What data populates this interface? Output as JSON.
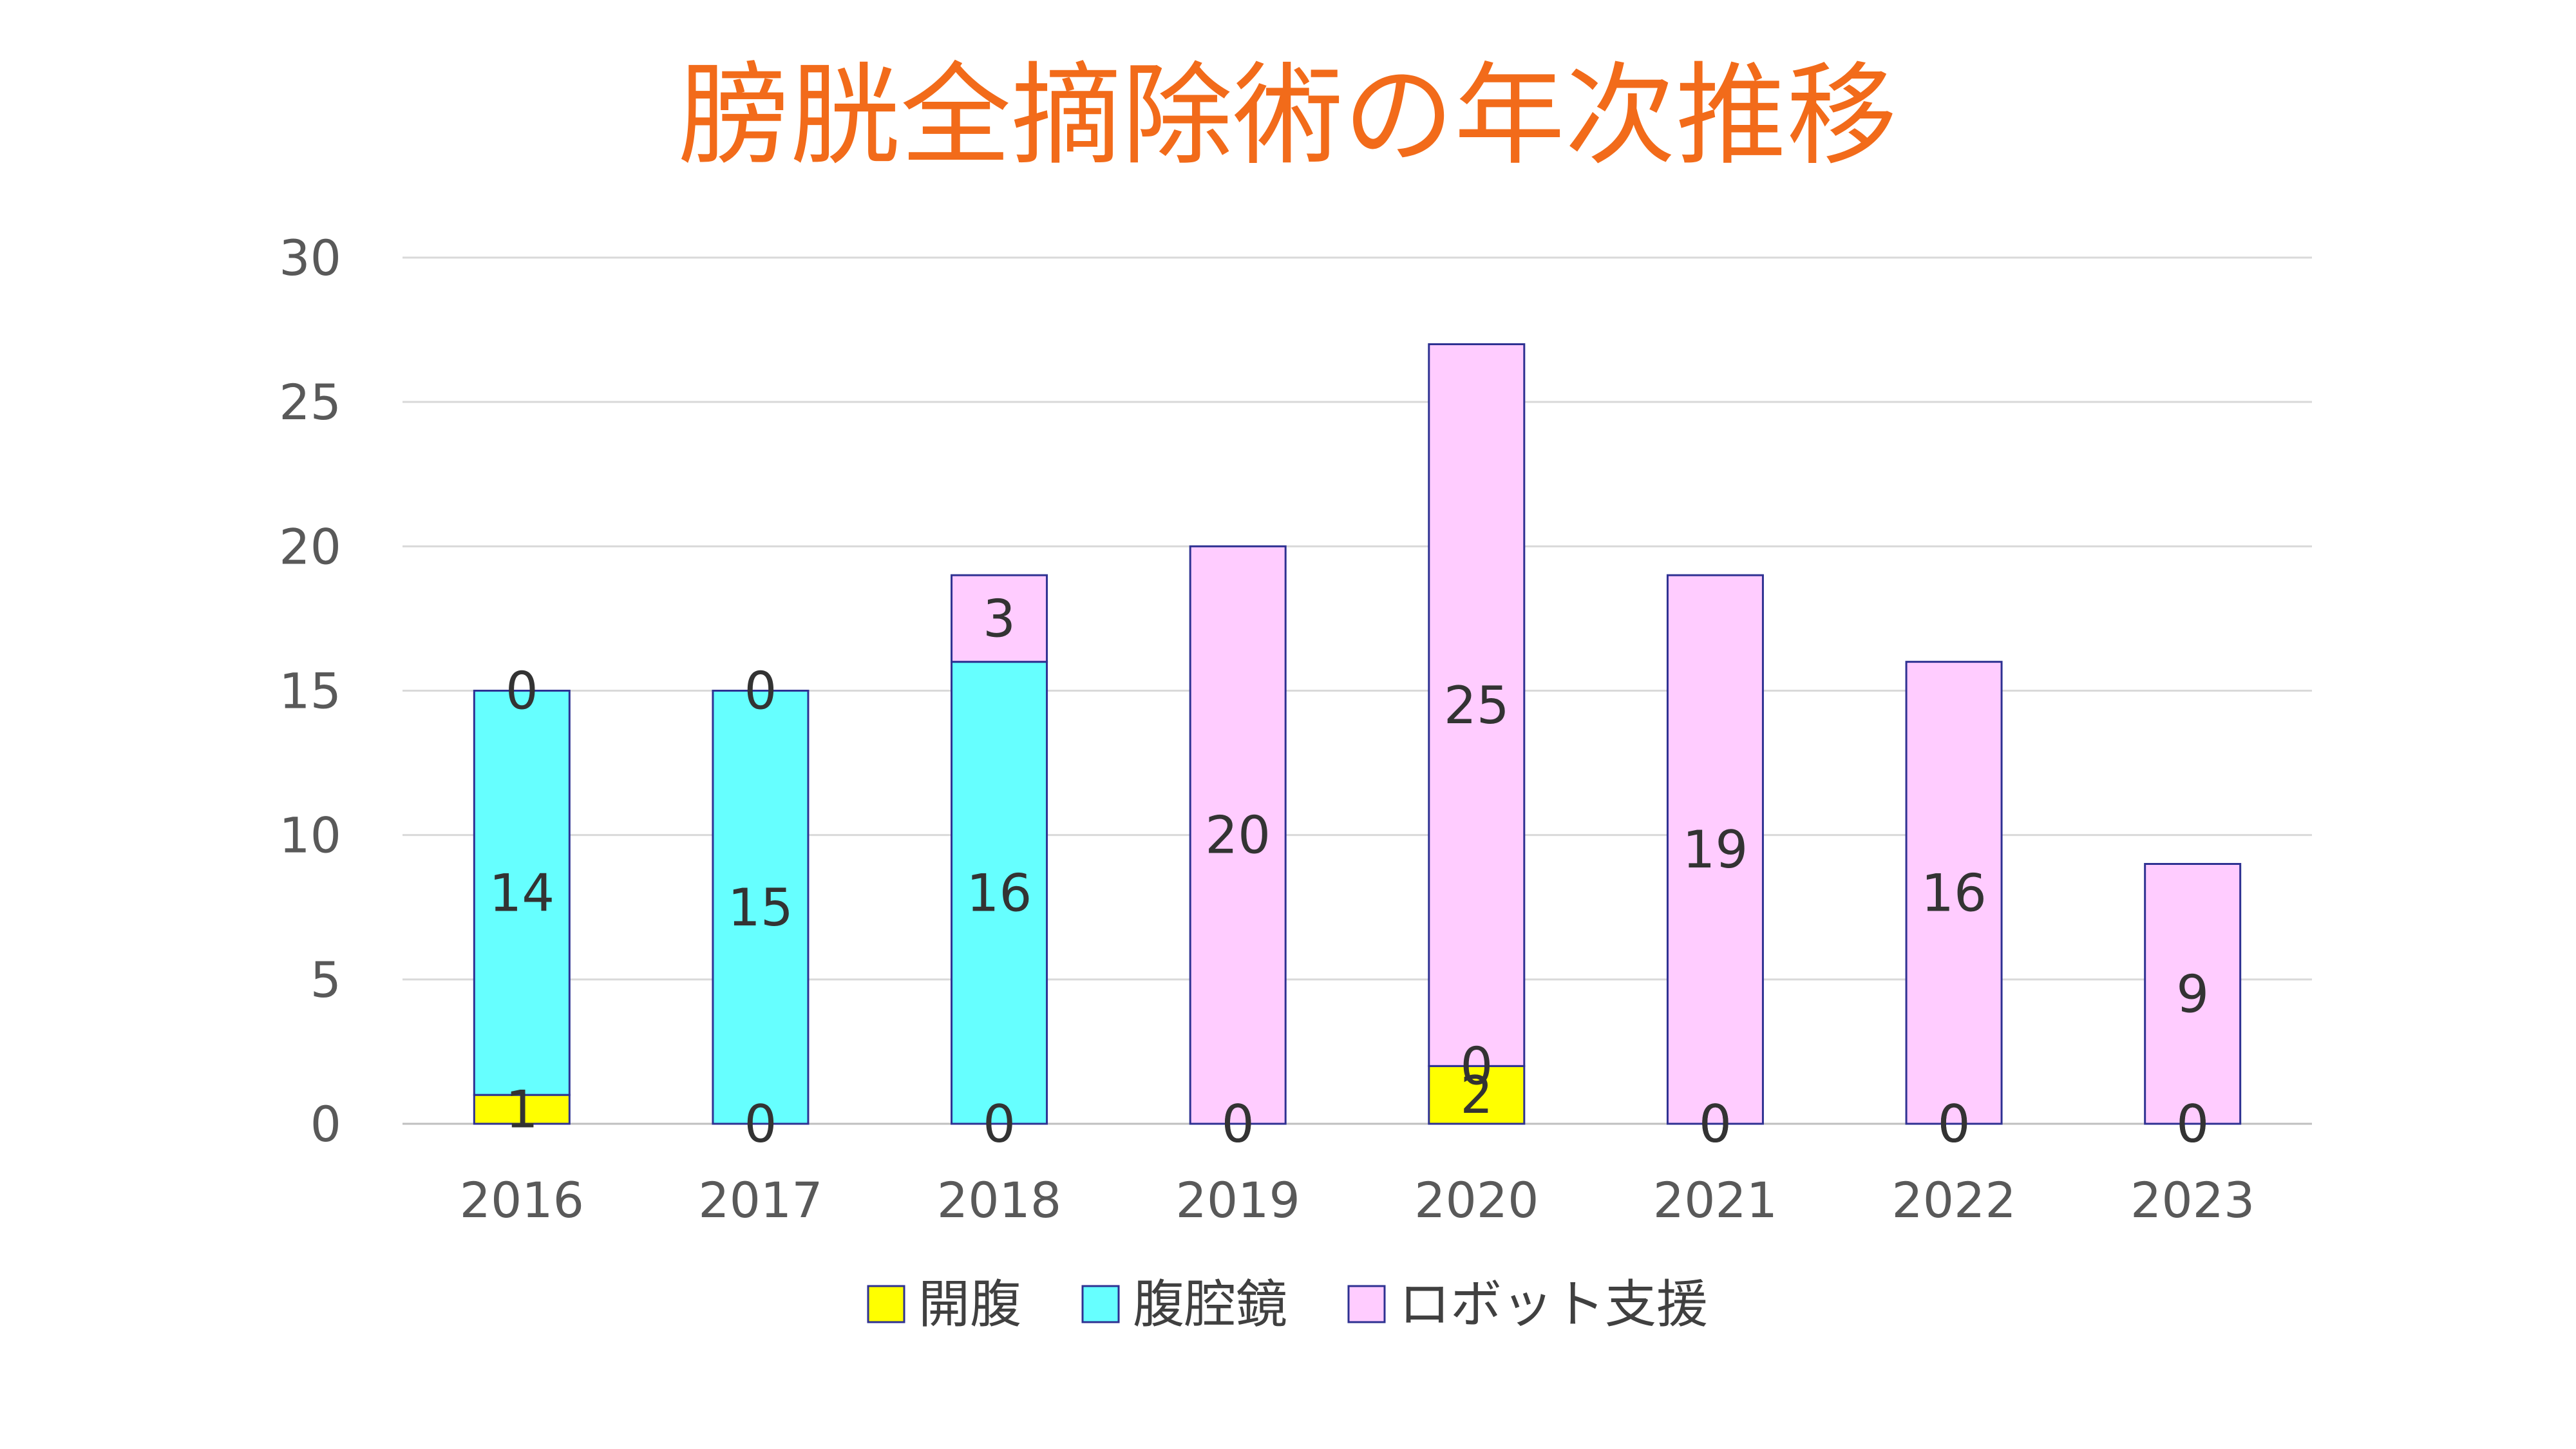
{
  "chart_data": {
    "type": "bar",
    "stacked": true,
    "title": "膀胱全摘除術の年次推移",
    "xlabel": "",
    "ylabel": "",
    "categories": [
      "2016",
      "2017",
      "2018",
      "2019",
      "2020",
      "2021",
      "2022",
      "2023"
    ],
    "series": [
      {
        "name": "開腹",
        "color": "#ffff00",
        "values": [
          1,
          0,
          0,
          0,
          2,
          0,
          0,
          0
        ]
      },
      {
        "name": "腹腔鏡",
        "color": "#66ffff",
        "values": [
          14,
          15,
          16,
          0,
          0,
          0,
          0,
          0
        ]
      },
      {
        "name": "ロボット支援",
        "color": "#ffccff",
        "values": [
          0,
          0,
          3,
          20,
          25,
          19,
          16,
          9
        ]
      }
    ],
    "ylim": [
      0,
      30
    ],
    "yticks": [
      0,
      5,
      10,
      15,
      20,
      25,
      30
    ],
    "grid": true,
    "legend_position": "bottom",
    "bar_outline_color": "#2e3192"
  }
}
